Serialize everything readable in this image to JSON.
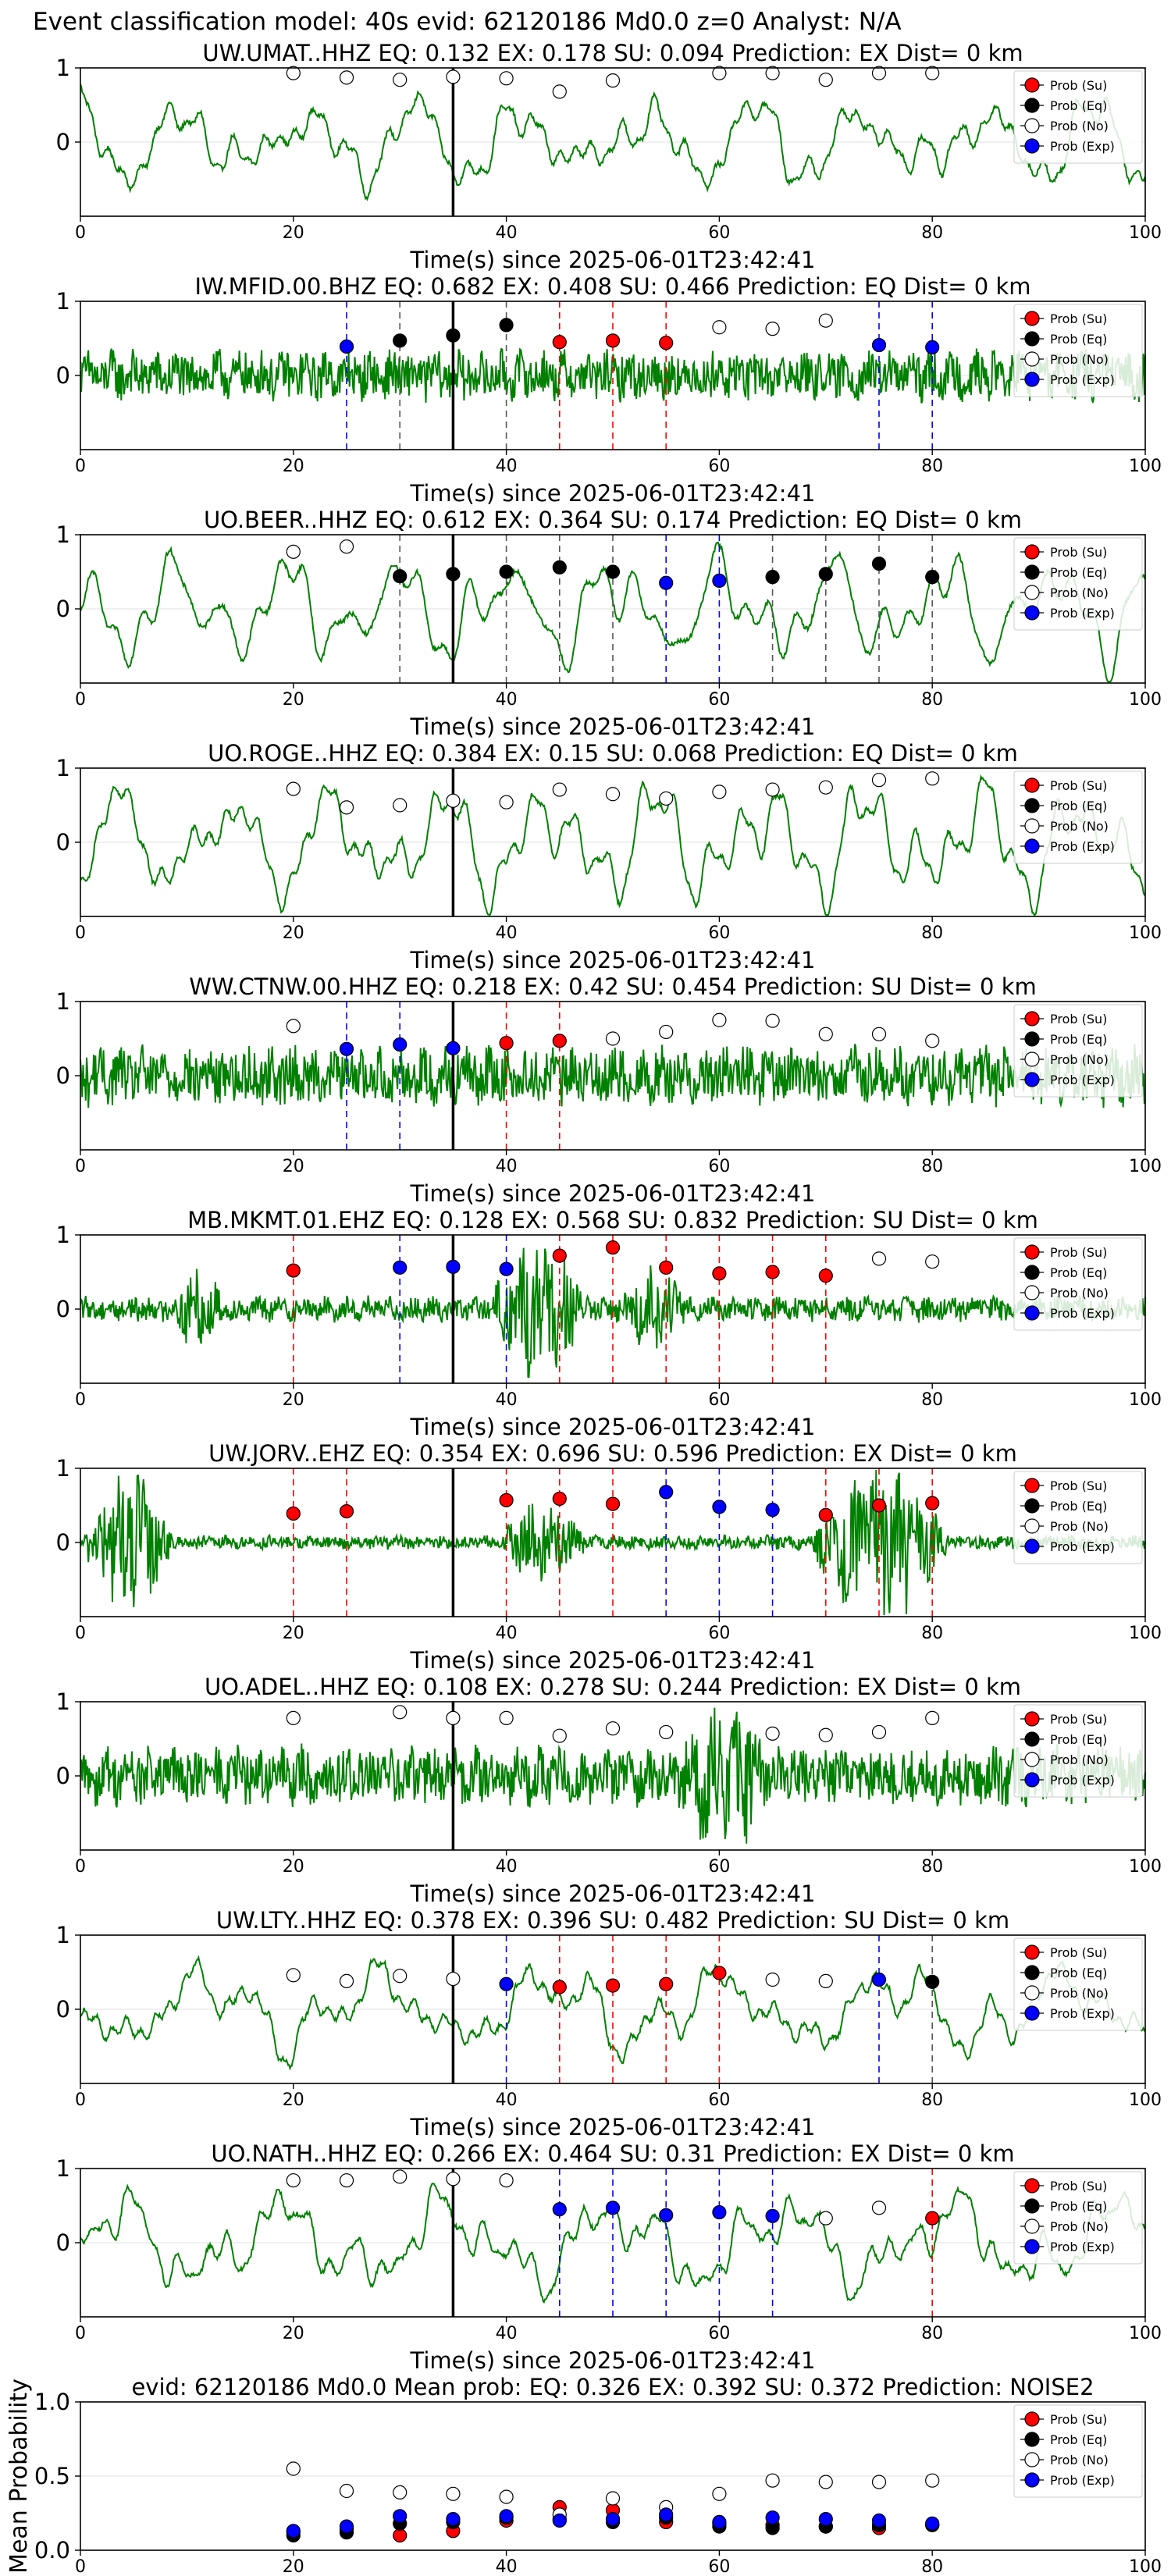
{
  "figure": {
    "title": "Event classification model: 40s evid: 62120186 Md0.0 z=0 Analyst: N/A"
  },
  "legend_labels": [
    "Prob (Su)",
    "Prob (Eq)",
    "Prob (No)",
    "Prob (Exp)"
  ],
  "colors": {
    "su": "#ff0000",
    "eq": "#000000",
    "no": "#ffffff",
    "exp": "#0000ff",
    "waveform": "#008000",
    "origin_line": "#000000"
  },
  "chart_data": [
    {
      "type": "line",
      "title": "UW.UMAT..HHZ   EQ: 0.132   EX: 0.178   SU: 0.094   Prediction: EX    Dist= 0 km",
      "xlabel": "Time(s) since 2025-06-01T23:42:41",
      "xlim": [
        0,
        100
      ],
      "ylim": [
        -1,
        1
      ],
      "xticks": [
        "0",
        "20",
        "40",
        "60",
        "80",
        "100"
      ],
      "yticks": [
        "0",
        "1"
      ],
      "origin_line_x": 35,
      "waveform": {
        "style": "smooth",
        "amp": 0.45
      },
      "points": [
        {
          "x": 20,
          "y": 0.93,
          "cls": "no"
        },
        {
          "x": 25,
          "y": 0.87,
          "cls": "no"
        },
        {
          "x": 30,
          "y": 0.84,
          "cls": "no"
        },
        {
          "x": 35,
          "y": 0.88,
          "cls": "no"
        },
        {
          "x": 40,
          "y": 0.86,
          "cls": "no"
        },
        {
          "x": 45,
          "y": 0.68,
          "cls": "no"
        },
        {
          "x": 50,
          "y": 0.83,
          "cls": "no"
        },
        {
          "x": 60,
          "y": 0.93,
          "cls": "no"
        },
        {
          "x": 65,
          "y": 0.93,
          "cls": "no"
        },
        {
          "x": 70,
          "y": 0.84,
          "cls": "no"
        },
        {
          "x": 75,
          "y": 0.93,
          "cls": "no"
        },
        {
          "x": 80,
          "y": 0.93,
          "cls": "no"
        }
      ]
    },
    {
      "type": "line",
      "title": "IW.MFID.00.BHZ   EQ: 0.682   EX: 0.408   SU: 0.466   Prediction: EQ    Dist= 0 km",
      "xlabel": "Time(s) since 2025-06-01T23:42:41",
      "xlim": [
        0,
        100
      ],
      "ylim": [
        -1,
        1
      ],
      "xticks": [
        "0",
        "20",
        "40",
        "60",
        "80",
        "100"
      ],
      "yticks": [
        "0",
        "1"
      ],
      "origin_line_x": 35,
      "waveform": {
        "style": "noisy",
        "amp": 0.3
      },
      "points": [
        {
          "x": 25,
          "y": 0.39,
          "cls": "exp"
        },
        {
          "x": 30,
          "y": 0.47,
          "cls": "eq"
        },
        {
          "x": 35,
          "y": 0.54,
          "cls": "eq"
        },
        {
          "x": 40,
          "y": 0.68,
          "cls": "eq"
        },
        {
          "x": 45,
          "y": 0.45,
          "cls": "su"
        },
        {
          "x": 50,
          "y": 0.47,
          "cls": "su"
        },
        {
          "x": 55,
          "y": 0.44,
          "cls": "su"
        },
        {
          "x": 60,
          "y": 0.65,
          "cls": "no"
        },
        {
          "x": 65,
          "y": 0.63,
          "cls": "no"
        },
        {
          "x": 70,
          "y": 0.74,
          "cls": "no"
        },
        {
          "x": 75,
          "y": 0.41,
          "cls": "exp"
        },
        {
          "x": 80,
          "y": 0.38,
          "cls": "exp"
        }
      ]
    },
    {
      "type": "line",
      "title": "UO.BEER..HHZ   EQ: 0.612   EX: 0.364   SU: 0.174   Prediction: EQ    Dist= 0 km",
      "xlabel": "Time(s) since 2025-06-01T23:42:41",
      "xlim": [
        0,
        100
      ],
      "ylim": [
        -1,
        1
      ],
      "xticks": [
        "0",
        "20",
        "40",
        "60",
        "80",
        "100"
      ],
      "yticks": [
        "0",
        "1"
      ],
      "origin_line_x": 35,
      "waveform": {
        "style": "smooth",
        "amp": 0.55
      },
      "points": [
        {
          "x": 20,
          "y": 0.77,
          "cls": "no"
        },
        {
          "x": 25,
          "y": 0.84,
          "cls": "no"
        },
        {
          "x": 30,
          "y": 0.44,
          "cls": "eq"
        },
        {
          "x": 35,
          "y": 0.47,
          "cls": "eq"
        },
        {
          "x": 40,
          "y": 0.5,
          "cls": "eq"
        },
        {
          "x": 45,
          "y": 0.56,
          "cls": "eq"
        },
        {
          "x": 50,
          "y": 0.5,
          "cls": "eq"
        },
        {
          "x": 55,
          "y": 0.35,
          "cls": "exp"
        },
        {
          "x": 60,
          "y": 0.38,
          "cls": "exp"
        },
        {
          "x": 65,
          "y": 0.43,
          "cls": "eq"
        },
        {
          "x": 70,
          "y": 0.47,
          "cls": "eq"
        },
        {
          "x": 75,
          "y": 0.61,
          "cls": "eq"
        },
        {
          "x": 80,
          "y": 0.43,
          "cls": "eq"
        }
      ]
    },
    {
      "type": "line",
      "title": "UO.ROGE..HHZ   EQ: 0.384   EX: 0.15   SU: 0.068   Prediction: EQ    Dist= 0 km",
      "xlabel": "Time(s) since 2025-06-01T23:42:41",
      "xlim": [
        0,
        100
      ],
      "ylim": [
        -1,
        1
      ],
      "xticks": [
        "0",
        "20",
        "40",
        "60",
        "80",
        "100"
      ],
      "yticks": [
        "0",
        "1"
      ],
      "origin_line_x": 35,
      "waveform": {
        "style": "smooth",
        "amp": 0.6
      },
      "points": [
        {
          "x": 20,
          "y": 0.72,
          "cls": "no"
        },
        {
          "x": 25,
          "y": 0.47,
          "cls": "no"
        },
        {
          "x": 30,
          "y": 0.5,
          "cls": "no"
        },
        {
          "x": 35,
          "y": 0.56,
          "cls": "no"
        },
        {
          "x": 40,
          "y": 0.54,
          "cls": "no"
        },
        {
          "x": 45,
          "y": 0.71,
          "cls": "no"
        },
        {
          "x": 50,
          "y": 0.65,
          "cls": "no"
        },
        {
          "x": 55,
          "y": 0.59,
          "cls": "no"
        },
        {
          "x": 60,
          "y": 0.68,
          "cls": "no"
        },
        {
          "x": 65,
          "y": 0.71,
          "cls": "no"
        },
        {
          "x": 70,
          "y": 0.74,
          "cls": "no"
        },
        {
          "x": 75,
          "y": 0.84,
          "cls": "no"
        },
        {
          "x": 80,
          "y": 0.86,
          "cls": "no"
        }
      ]
    },
    {
      "type": "line",
      "title": "WW.CTNW.00.HHZ   EQ: 0.218   EX: 0.42   SU: 0.454   Prediction: SU    Dist= 0 km",
      "xlabel": "Time(s) since 2025-06-01T23:42:41",
      "xlim": [
        0,
        100
      ],
      "ylim": [
        -1,
        1
      ],
      "xticks": [
        "0",
        "20",
        "40",
        "60",
        "80",
        "100"
      ],
      "yticks": [
        "0",
        "1"
      ],
      "origin_line_x": 35,
      "waveform": {
        "style": "noisy",
        "amp": 0.35
      },
      "points": [
        {
          "x": 20,
          "y": 0.67,
          "cls": "no"
        },
        {
          "x": 25,
          "y": 0.36,
          "cls": "exp"
        },
        {
          "x": 30,
          "y": 0.42,
          "cls": "exp"
        },
        {
          "x": 35,
          "y": 0.37,
          "cls": "exp"
        },
        {
          "x": 40,
          "y": 0.44,
          "cls": "su"
        },
        {
          "x": 45,
          "y": 0.47,
          "cls": "su"
        },
        {
          "x": 50,
          "y": 0.5,
          "cls": "no"
        },
        {
          "x": 55,
          "y": 0.59,
          "cls": "no"
        },
        {
          "x": 60,
          "y": 0.75,
          "cls": "no"
        },
        {
          "x": 65,
          "y": 0.74,
          "cls": "no"
        },
        {
          "x": 70,
          "y": 0.56,
          "cls": "no"
        },
        {
          "x": 75,
          "y": 0.56,
          "cls": "no"
        },
        {
          "x": 80,
          "y": 0.47,
          "cls": "no"
        }
      ]
    },
    {
      "type": "line",
      "title": "MB.MKMT.01.EHZ   EQ: 0.128   EX: 0.568   SU: 0.832   Prediction: SU    Dist= 0 km",
      "xlabel": "Time(s) since 2025-06-01T23:42:41",
      "xlim": [
        0,
        100
      ],
      "ylim": [
        -1,
        1
      ],
      "xticks": [
        "0",
        "20",
        "40",
        "60",
        "80",
        "100"
      ],
      "yticks": [
        "0",
        "1"
      ],
      "origin_line_x": 35,
      "waveform": {
        "style": "burst",
        "amp": 0.15,
        "burst": [
          [
            8,
            14,
            0.5
          ],
          [
            38,
            48,
            0.9
          ],
          [
            50,
            58,
            0.5
          ]
        ]
      },
      "points": [
        {
          "x": 20,
          "y": 0.52,
          "cls": "su"
        },
        {
          "x": 30,
          "y": 0.56,
          "cls": "exp"
        },
        {
          "x": 35,
          "y": 0.57,
          "cls": "exp"
        },
        {
          "x": 40,
          "y": 0.54,
          "cls": "exp"
        },
        {
          "x": 45,
          "y": 0.72,
          "cls": "su"
        },
        {
          "x": 50,
          "y": 0.83,
          "cls": "su"
        },
        {
          "x": 55,
          "y": 0.56,
          "cls": "su"
        },
        {
          "x": 60,
          "y": 0.48,
          "cls": "su"
        },
        {
          "x": 65,
          "y": 0.5,
          "cls": "su"
        },
        {
          "x": 70,
          "y": 0.45,
          "cls": "su"
        },
        {
          "x": 75,
          "y": 0.68,
          "cls": "no"
        },
        {
          "x": 80,
          "y": 0.64,
          "cls": "no"
        }
      ]
    },
    {
      "type": "line",
      "title": "UW.JORV..EHZ   EQ: 0.354   EX: 0.696   SU: 0.596   Prediction: EX    Dist= 0 km",
      "xlabel": "Time(s) since 2025-06-01T23:42:41",
      "xlim": [
        0,
        100
      ],
      "ylim": [
        -1,
        1
      ],
      "xticks": [
        "0",
        "20",
        "40",
        "60",
        "80",
        "100"
      ],
      "yticks": [
        "0",
        "1"
      ],
      "origin_line_x": 35,
      "waveform": {
        "style": "burst",
        "amp": 0.08,
        "burst": [
          [
            0,
            9,
            0.9
          ],
          [
            39,
            48,
            0.5
          ],
          [
            68,
            82,
            0.95
          ]
        ]
      },
      "points": [
        {
          "x": 20,
          "y": 0.39,
          "cls": "su"
        },
        {
          "x": 25,
          "y": 0.42,
          "cls": "su"
        },
        {
          "x": 40,
          "y": 0.57,
          "cls": "su"
        },
        {
          "x": 45,
          "y": 0.59,
          "cls": "su"
        },
        {
          "x": 50,
          "y": 0.52,
          "cls": "su"
        },
        {
          "x": 55,
          "y": 0.68,
          "cls": "exp"
        },
        {
          "x": 60,
          "y": 0.48,
          "cls": "exp"
        },
        {
          "x": 65,
          "y": 0.44,
          "cls": "exp"
        },
        {
          "x": 70,
          "y": 0.37,
          "cls": "su"
        },
        {
          "x": 75,
          "y": 0.5,
          "cls": "su"
        },
        {
          "x": 80,
          "y": 0.53,
          "cls": "su"
        }
      ]
    },
    {
      "type": "line",
      "title": "UO.ADEL..HHZ   EQ: 0.108   EX: 0.278   SU: 0.244   Prediction: EX    Dist= 0 km",
      "xlabel": "Time(s) since 2025-06-01T23:42:41",
      "xlim": [
        0,
        100
      ],
      "ylim": [
        -1,
        1
      ],
      "xticks": [
        "0",
        "20",
        "40",
        "60",
        "80",
        "100"
      ],
      "yticks": [
        "0",
        "1"
      ],
      "origin_line_x": 35,
      "waveform": {
        "style": "burst",
        "amp": 0.35,
        "burst": [
          [
            55,
            66,
            0.9
          ]
        ]
      },
      "points": [
        {
          "x": 20,
          "y": 0.78,
          "cls": "no"
        },
        {
          "x": 30,
          "y": 0.86,
          "cls": "no"
        },
        {
          "x": 35,
          "y": 0.78,
          "cls": "no"
        },
        {
          "x": 40,
          "y": 0.78,
          "cls": "no"
        },
        {
          "x": 45,
          "y": 0.54,
          "cls": "no"
        },
        {
          "x": 50,
          "y": 0.64,
          "cls": "no"
        },
        {
          "x": 55,
          "y": 0.59,
          "cls": "no"
        },
        {
          "x": 65,
          "y": 0.57,
          "cls": "no"
        },
        {
          "x": 70,
          "y": 0.55,
          "cls": "no"
        },
        {
          "x": 75,
          "y": 0.59,
          "cls": "no"
        },
        {
          "x": 80,
          "y": 0.78,
          "cls": "no"
        }
      ]
    },
    {
      "type": "line",
      "title": "UW.LTY..HHZ   EQ: 0.378   EX: 0.396   SU: 0.482   Prediction: SU    Dist= 0 km",
      "xlabel": "Time(s) since 2025-06-01T23:42:41",
      "xlim": [
        0,
        100
      ],
      "ylim": [
        -1,
        1
      ],
      "xticks": [
        "0",
        "20",
        "40",
        "60",
        "80",
        "100"
      ],
      "yticks": [
        "0",
        "1"
      ],
      "origin_line_x": 35,
      "waveform": {
        "style": "smooth",
        "amp": 0.45
      },
      "points": [
        {
          "x": 20,
          "y": 0.46,
          "cls": "no"
        },
        {
          "x": 25,
          "y": 0.38,
          "cls": "no"
        },
        {
          "x": 30,
          "y": 0.45,
          "cls": "no"
        },
        {
          "x": 35,
          "y": 0.41,
          "cls": "no"
        },
        {
          "x": 40,
          "y": 0.34,
          "cls": "exp"
        },
        {
          "x": 45,
          "y": 0.3,
          "cls": "su"
        },
        {
          "x": 50,
          "y": 0.32,
          "cls": "su"
        },
        {
          "x": 55,
          "y": 0.34,
          "cls": "su"
        },
        {
          "x": 60,
          "y": 0.49,
          "cls": "su"
        },
        {
          "x": 65,
          "y": 0.4,
          "cls": "no"
        },
        {
          "x": 70,
          "y": 0.38,
          "cls": "no"
        },
        {
          "x": 75,
          "y": 0.4,
          "cls": "exp"
        },
        {
          "x": 80,
          "y": 0.37,
          "cls": "eq"
        }
      ]
    },
    {
      "type": "line",
      "title": "UO.NATH..HHZ   EQ: 0.266   EX: 0.464   SU: 0.31   Prediction: EX    Dist= 0 km",
      "xlabel": "Time(s) since 2025-06-01T23:42:41",
      "xlim": [
        0,
        100
      ],
      "ylim": [
        -1,
        1
      ],
      "xticks": [
        "0",
        "20",
        "40",
        "60",
        "80",
        "100"
      ],
      "yticks": [
        "0",
        "1"
      ],
      "origin_line_x": 35,
      "waveform": {
        "style": "smooth",
        "amp": 0.5
      },
      "points": [
        {
          "x": 20,
          "y": 0.84,
          "cls": "no"
        },
        {
          "x": 25,
          "y": 0.84,
          "cls": "no"
        },
        {
          "x": 30,
          "y": 0.89,
          "cls": "no"
        },
        {
          "x": 35,
          "y": 0.86,
          "cls": "no"
        },
        {
          "x": 40,
          "y": 0.84,
          "cls": "no"
        },
        {
          "x": 45,
          "y": 0.45,
          "cls": "exp"
        },
        {
          "x": 50,
          "y": 0.47,
          "cls": "exp"
        },
        {
          "x": 55,
          "y": 0.37,
          "cls": "exp"
        },
        {
          "x": 60,
          "y": 0.41,
          "cls": "exp"
        },
        {
          "x": 65,
          "y": 0.36,
          "cls": "exp"
        },
        {
          "x": 70,
          "y": 0.33,
          "cls": "no"
        },
        {
          "x": 75,
          "y": 0.47,
          "cls": "no"
        },
        {
          "x": 80,
          "y": 0.33,
          "cls": "su"
        }
      ]
    },
    {
      "type": "scatter",
      "title": "evid: 62120186  Md0.0   Mean prob:   EQ: 0.326  EX: 0.392  SU: 0.372   Prediction: NOISE2",
      "ylabel": "Mean Probability",
      "xlim": [
        0,
        100
      ],
      "ylim": [
        0,
        1
      ],
      "xticks": [
        "0",
        "20",
        "40",
        "60",
        "80",
        "100"
      ],
      "yticks": [
        "0.0",
        "0.5",
        "1.0"
      ],
      "series": [
        {
          "name": "Prob (Su)",
          "cls": "su",
          "x": [
            20,
            25,
            30,
            35,
            40,
            45,
            50,
            55,
            60,
            65,
            70,
            75,
            80
          ],
          "y": [
            0.12,
            0.14,
            0.1,
            0.13,
            0.2,
            0.29,
            0.27,
            0.19,
            0.18,
            0.17,
            0.16,
            0.15,
            0.17
          ]
        },
        {
          "name": "Prob (Eq)",
          "cls": "eq",
          "x": [
            20,
            25,
            30,
            35,
            40,
            45,
            50,
            55,
            60,
            65,
            70,
            75,
            80
          ],
          "y": [
            0.1,
            0.12,
            0.18,
            0.19,
            0.22,
            0.21,
            0.19,
            0.22,
            0.16,
            0.15,
            0.16,
            0.17,
            0.17
          ]
        },
        {
          "name": "Prob (No)",
          "cls": "no",
          "x": [
            20,
            25,
            30,
            35,
            40,
            45,
            50,
            55,
            60,
            65,
            70,
            75,
            80
          ],
          "y": [
            0.55,
            0.4,
            0.39,
            0.38,
            0.36,
            0.24,
            0.35,
            0.29,
            0.38,
            0.47,
            0.46,
            0.46,
            0.47
          ]
        },
        {
          "name": "Prob (Exp)",
          "cls": "exp",
          "x": [
            20,
            25,
            30,
            35,
            40,
            45,
            50,
            55,
            60,
            65,
            70,
            75,
            80
          ],
          "y": [
            0.13,
            0.16,
            0.23,
            0.21,
            0.23,
            0.2,
            0.21,
            0.24,
            0.19,
            0.22,
            0.21,
            0.2,
            0.18
          ]
        }
      ]
    }
  ]
}
